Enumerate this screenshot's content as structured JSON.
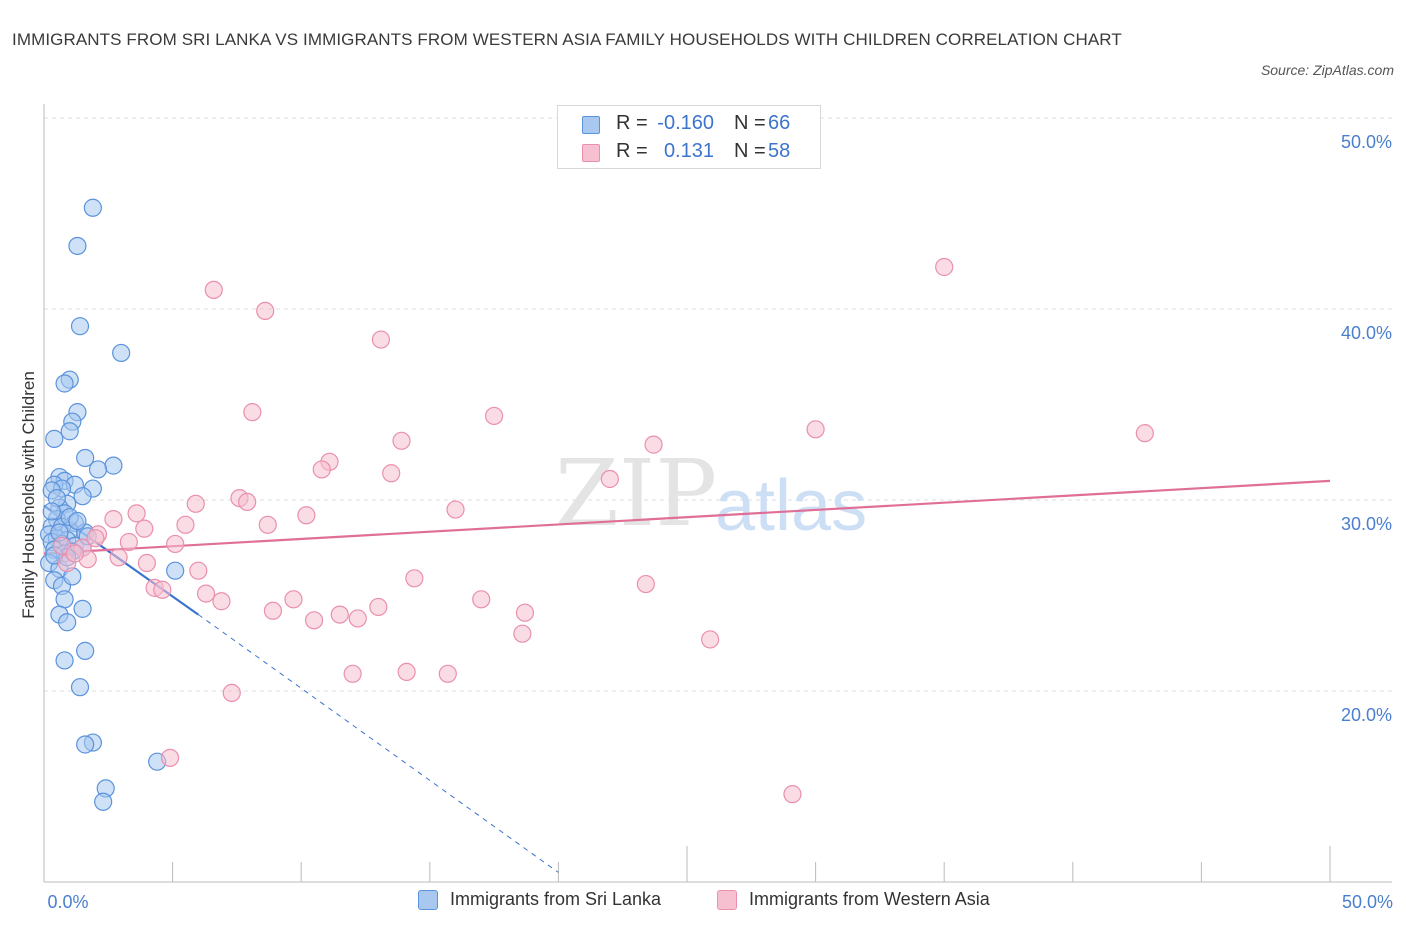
{
  "title": "IMMIGRANTS FROM SRI LANKA VS IMMIGRANTS FROM WESTERN ASIA FAMILY HOUSEHOLDS WITH CHILDREN CORRELATION CHART",
  "source": "Source: ZipAtlas.com",
  "watermark": {
    "zip": "ZIP",
    "atlas": "atlas"
  },
  "legend": {
    "blue": {
      "r_label": "R =",
      "r_value": "-0.160",
      "n_label": "N =",
      "n_value": "66"
    },
    "pink": {
      "r_label": "R =",
      "r_value": "0.131",
      "n_label": "N =",
      "n_value": "58"
    }
  },
  "bottom_legend": {
    "blue_label": "Immigrants from Sri Lanka",
    "pink_label": "Immigrants from Western Asia"
  },
  "colors": {
    "blue_fill": "#a8c8f0",
    "blue_stroke": "#5b93dc",
    "blue_line": "#3a74d0",
    "pink_fill": "#f6c0d0",
    "pink_stroke": "#ea8fae",
    "pink_line": "#e06f97",
    "grid": "#dddddd",
    "tick_text": "#4a7fd0"
  },
  "chart_data": {
    "type": "scatter",
    "title": "IMMIGRANTS FROM SRI LANKA VS IMMIGRANTS FROM WESTERN ASIA FAMILY HOUSEHOLDS WITH CHILDREN CORRELATION CHART",
    "xlabel": "",
    "ylabel": "Family Households with Children",
    "xlim": [
      0,
      50
    ],
    "ylim": [
      10,
      50
    ],
    "x_tick_labels": [
      "0.0%",
      "50.0%"
    ],
    "y_ticks": [
      20,
      30,
      40,
      50
    ],
    "y_tick_labels": [
      "20.0%",
      "30.0%",
      "40.0%",
      "50.0%"
    ],
    "grid": true,
    "legend_position": "top-center",
    "series": [
      {
        "name": "Immigrants from Sri Lanka",
        "color": "blue",
        "R": -0.16,
        "N": 66,
        "trend_solid": [
          [
            0.0,
            29.7
          ],
          [
            6.0,
            24.0
          ]
        ],
        "trend_dashed": [
          [
            6.0,
            24.0
          ],
          [
            20.0,
            10.5
          ]
        ],
        "points": [
          [
            1.9,
            45.3
          ],
          [
            1.3,
            43.3
          ],
          [
            1.4,
            39.1
          ],
          [
            3.0,
            37.7
          ],
          [
            1.0,
            36.3
          ],
          [
            0.8,
            36.1
          ],
          [
            1.3,
            34.6
          ],
          [
            1.1,
            34.1
          ],
          [
            1.0,
            33.6
          ],
          [
            0.4,
            33.2
          ],
          [
            1.6,
            32.2
          ],
          [
            2.7,
            31.8
          ],
          [
            2.1,
            31.6
          ],
          [
            0.6,
            31.2
          ],
          [
            0.8,
            31.0
          ],
          [
            1.2,
            30.8
          ],
          [
            0.4,
            30.8
          ],
          [
            0.7,
            30.6
          ],
          [
            1.9,
            30.6
          ],
          [
            0.3,
            30.5
          ],
          [
            1.5,
            30.2
          ],
          [
            0.9,
            29.8
          ],
          [
            0.6,
            29.6
          ],
          [
            0.8,
            29.3
          ],
          [
            0.5,
            29.0
          ],
          [
            1.2,
            28.8
          ],
          [
            0.3,
            28.6
          ],
          [
            0.7,
            28.6
          ],
          [
            1.0,
            28.4
          ],
          [
            1.6,
            28.3
          ],
          [
            0.2,
            28.2
          ],
          [
            0.5,
            28.0
          ],
          [
            0.9,
            27.9
          ],
          [
            0.3,
            27.8
          ],
          [
            0.7,
            27.7
          ],
          [
            1.2,
            27.6
          ],
          [
            1.5,
            27.5
          ],
          [
            0.4,
            27.4
          ],
          [
            0.8,
            27.2
          ],
          [
            1.1,
            27.3
          ],
          [
            0.2,
            26.7
          ],
          [
            0.6,
            26.4
          ],
          [
            0.4,
            25.8
          ],
          [
            0.7,
            25.5
          ],
          [
            0.8,
            24.8
          ],
          [
            1.5,
            24.3
          ],
          [
            0.6,
            24.0
          ],
          [
            0.9,
            23.6
          ],
          [
            1.6,
            22.1
          ],
          [
            0.8,
            21.6
          ],
          [
            1.4,
            20.2
          ],
          [
            1.9,
            17.3
          ],
          [
            1.6,
            17.2
          ],
          [
            4.4,
            16.3
          ],
          [
            2.4,
            14.9
          ],
          [
            2.3,
            14.2
          ],
          [
            5.1,
            26.3
          ],
          [
            1.0,
            29.1
          ],
          [
            0.5,
            30.1
          ],
          [
            1.3,
            28.9
          ],
          [
            0.9,
            27.0
          ],
          [
            0.3,
            29.4
          ],
          [
            1.7,
            28.1
          ],
          [
            0.6,
            28.3
          ],
          [
            1.1,
            26.0
          ],
          [
            0.4,
            27.1
          ]
        ]
      },
      {
        "name": "Immigrants from Western Asia",
        "color": "pink",
        "R": 0.131,
        "N": 58,
        "trend_solid": [
          [
            0.0,
            27.2
          ],
          [
            50.0,
            31.0
          ]
        ],
        "points": [
          [
            35.0,
            42.2
          ],
          [
            6.6,
            41.0
          ],
          [
            8.6,
            39.9
          ],
          [
            13.1,
            38.4
          ],
          [
            8.1,
            34.6
          ],
          [
            17.5,
            34.4
          ],
          [
            30.0,
            33.7
          ],
          [
            42.8,
            33.5
          ],
          [
            13.9,
            33.1
          ],
          [
            23.7,
            32.9
          ],
          [
            11.1,
            32.0
          ],
          [
            10.8,
            31.6
          ],
          [
            13.5,
            31.4
          ],
          [
            22.0,
            31.1
          ],
          [
            7.6,
            30.1
          ],
          [
            5.9,
            29.8
          ],
          [
            7.9,
            29.9
          ],
          [
            16.0,
            29.5
          ],
          [
            10.2,
            29.2
          ],
          [
            3.6,
            29.3
          ],
          [
            2.7,
            29.0
          ],
          [
            5.5,
            28.7
          ],
          [
            2.1,
            28.2
          ],
          [
            8.7,
            28.7
          ],
          [
            3.3,
            27.8
          ],
          [
            5.1,
            27.7
          ],
          [
            1.5,
            27.5
          ],
          [
            0.7,
            27.6
          ],
          [
            2.9,
            27.0
          ],
          [
            1.7,
            26.9
          ],
          [
            0.9,
            26.7
          ],
          [
            4.0,
            26.7
          ],
          [
            1.2,
            27.2
          ],
          [
            6.0,
            26.3
          ],
          [
            14.4,
            25.9
          ],
          [
            4.3,
            25.4
          ],
          [
            4.6,
            25.3
          ],
          [
            23.4,
            25.6
          ],
          [
            6.3,
            25.1
          ],
          [
            9.7,
            24.8
          ],
          [
            17.0,
            24.8
          ],
          [
            6.9,
            24.7
          ],
          [
            13.0,
            24.4
          ],
          [
            8.9,
            24.2
          ],
          [
            11.5,
            24.0
          ],
          [
            18.7,
            24.1
          ],
          [
            10.5,
            23.7
          ],
          [
            12.2,
            23.8
          ],
          [
            18.6,
            23.0
          ],
          [
            25.9,
            22.7
          ],
          [
            12.0,
            20.9
          ],
          [
            14.1,
            21.0
          ],
          [
            15.7,
            20.9
          ],
          [
            7.3,
            19.9
          ],
          [
            4.9,
            16.5
          ],
          [
            29.1,
            14.6
          ],
          [
            2.0,
            28.0
          ],
          [
            3.9,
            28.5
          ]
        ]
      }
    ]
  }
}
